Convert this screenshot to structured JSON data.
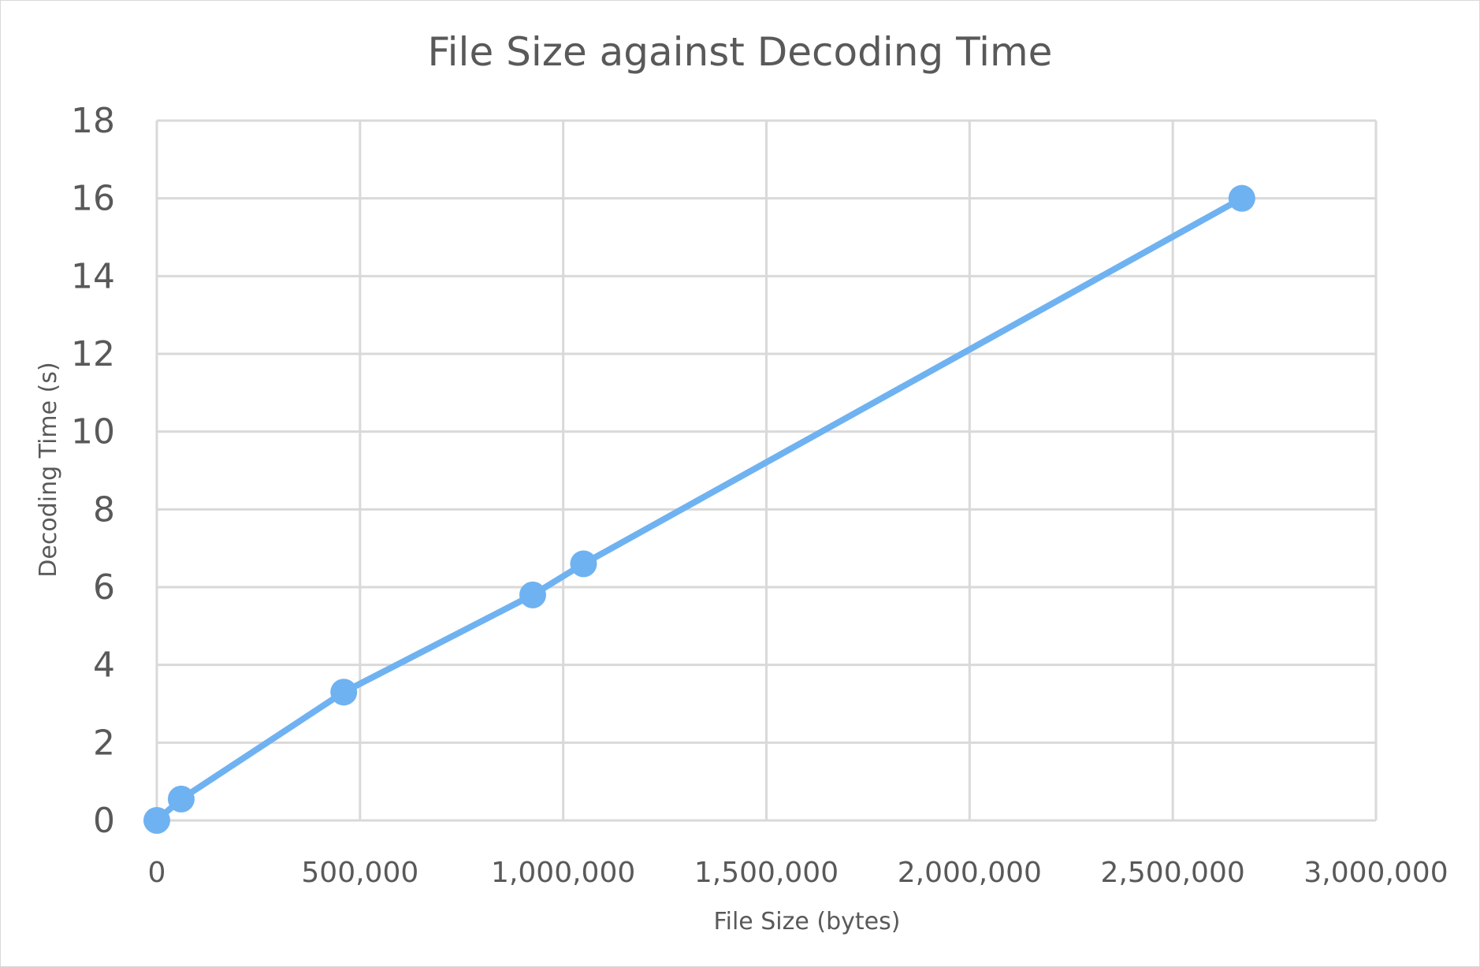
{
  "chart_data": {
    "type": "line",
    "title": "File Size against Decoding Time",
    "xlabel": "File Size (bytes)",
    "ylabel": "Decoding Time (s)",
    "xlim": [
      0,
      3000000
    ],
    "ylim": [
      0,
      18
    ],
    "x_ticks": [
      0,
      500000,
      1000000,
      1500000,
      2000000,
      2500000,
      3000000
    ],
    "x_tick_labels": [
      "0",
      "500,000",
      "1,000,000",
      "1,500,000",
      "2,000,000",
      "2,500,000",
      "3,000,000"
    ],
    "y_ticks": [
      0,
      2,
      4,
      6,
      8,
      10,
      12,
      14,
      16,
      18
    ],
    "y_tick_labels": [
      "0",
      "2",
      "4",
      "6",
      "8",
      "10",
      "12",
      "14",
      "16",
      "18"
    ],
    "grid": true,
    "legend": "none",
    "series": [
      {
        "color": "#6fb2f1",
        "marker": "circle",
        "x": [
          0,
          60000,
          460000,
          925000,
          1050000,
          2670000
        ],
        "y": [
          0.0,
          0.55,
          3.3,
          5.8,
          6.6,
          16.0
        ]
      }
    ]
  }
}
